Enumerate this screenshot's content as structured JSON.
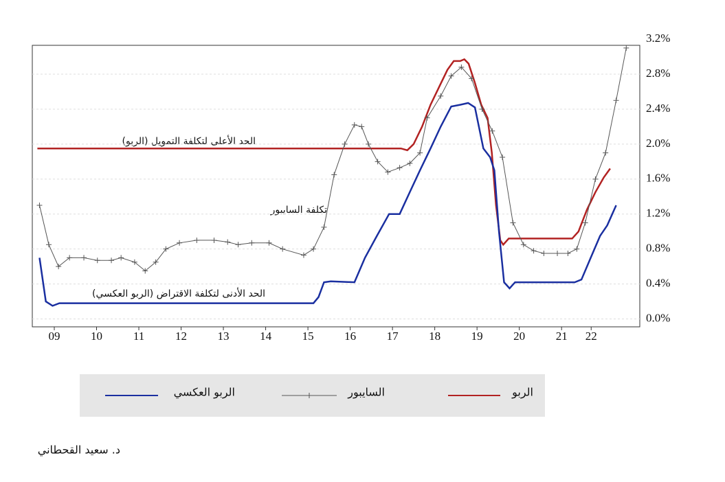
{
  "chart_data": {
    "type": "line",
    "annotations": [
      "الحد الأعلى لتكلفة التمويل (الربو)",
      "تكلفة السايبور",
      "الحد الأدنى لتكلفة الاقتراض (الربو العكسي)"
    ],
    "xlim": [
      8.98,
      23.35
    ],
    "xticks": [
      {
        "value": 9.5,
        "label": "09"
      },
      {
        "value": 10.5,
        "label": "10"
      },
      {
        "value": 11.5,
        "label": "11"
      },
      {
        "value": 12.5,
        "label": "12"
      },
      {
        "value": 13.5,
        "label": "13"
      },
      {
        "value": 14.5,
        "label": "14"
      },
      {
        "value": 15.5,
        "label": "15"
      },
      {
        "value": 16.5,
        "label": "16"
      },
      {
        "value": 17.5,
        "label": "17"
      },
      {
        "value": 18.5,
        "label": "18"
      },
      {
        "value": 19.5,
        "label": "19"
      },
      {
        "value": 20.5,
        "label": "20"
      },
      {
        "value": 21.5,
        "label": "21"
      },
      {
        "value": 22.2,
        "label": "22"
      }
    ],
    "ylim": [
      -0.09,
      3.13
    ],
    "yticks": [
      {
        "value": 0.0,
        "label": "0.0%"
      },
      {
        "value": 0.4,
        "label": "0.4%"
      },
      {
        "value": 0.8,
        "label": "0.8%"
      },
      {
        "value": 1.2,
        "label": "1.2%"
      },
      {
        "value": 1.6,
        "label": "1.6%"
      },
      {
        "value": 2.0,
        "label": "2.0%"
      },
      {
        "value": 2.4,
        "label": "2.4%"
      },
      {
        "value": 2.8,
        "label": "2.8%"
      },
      {
        "value": 3.2,
        "label": "3.2%"
      }
    ],
    "grid": true,
    "series": [
      {
        "name": "الربو",
        "color": "#b22222",
        "x": [
          9.1,
          17.7,
          17.85,
          18.0,
          18.2,
          18.4,
          18.6,
          18.8,
          18.95,
          19.1,
          19.2,
          19.3,
          19.45,
          19.6,
          19.75,
          19.85,
          19.95,
          20.05,
          20.12,
          20.25,
          20.5,
          21.0,
          21.5,
          21.75,
          21.9,
          22.1,
          22.3,
          22.5,
          22.65
        ],
        "values": [
          1.95,
          1.95,
          1.93,
          2.0,
          2.2,
          2.45,
          2.65,
          2.85,
          2.95,
          2.95,
          2.97,
          2.92,
          2.7,
          2.45,
          2.3,
          1.9,
          1.3,
          0.9,
          0.85,
          0.92,
          0.92,
          0.92,
          0.92,
          0.92,
          1.0,
          1.25,
          1.45,
          1.62,
          1.72
        ]
      },
      {
        "name": "السايبور",
        "color": "#555555",
        "marker": "+",
        "x": [
          9.15,
          9.37,
          9.6,
          9.86,
          10.2,
          10.52,
          10.85,
          11.08,
          11.4,
          11.65,
          11.9,
          12.14,
          12.46,
          12.87,
          13.28,
          13.6,
          13.85,
          14.17,
          14.58,
          14.9,
          15.4,
          15.63,
          15.88,
          16.12,
          16.37,
          16.6,
          16.77,
          16.93,
          17.15,
          17.39,
          17.67,
          17.91,
          18.15,
          18.32,
          18.64,
          18.89,
          19.13,
          19.37,
          19.62,
          19.86,
          20.1,
          20.35,
          20.6,
          20.84,
          21.08,
          21.4,
          21.65,
          21.86,
          22.06,
          22.3,
          22.54,
          22.79,
          23.03
        ],
        "values": [
          1.3,
          0.85,
          0.6,
          0.7,
          0.7,
          0.67,
          0.67,
          0.7,
          0.65,
          0.55,
          0.65,
          0.8,
          0.87,
          0.9,
          0.9,
          0.88,
          0.85,
          0.87,
          0.87,
          0.8,
          0.73,
          0.8,
          1.05,
          1.65,
          2.0,
          2.22,
          2.2,
          2.0,
          1.8,
          1.68,
          1.73,
          1.78,
          1.9,
          2.3,
          2.55,
          2.78,
          2.88,
          2.75,
          2.4,
          2.15,
          1.85,
          1.1,
          0.85,
          0.78,
          0.75,
          0.75,
          0.75,
          0.8,
          1.1,
          1.6,
          1.9,
          2.5,
          3.1
        ]
      },
      {
        "name": "الربو العكسي",
        "color": "#1a2fa0",
        "x": [
          9.15,
          9.3,
          9.46,
          9.62,
          15.47,
          15.63,
          15.75,
          15.88,
          16.04,
          16.6,
          16.85,
          17.13,
          17.42,
          17.67,
          17.91,
          18.15,
          18.4,
          18.64,
          18.89,
          19.1,
          19.29,
          19.45,
          19.65,
          19.81,
          19.91,
          20.02,
          20.14,
          20.27,
          20.4,
          20.76,
          21.81,
          21.97,
          22.19,
          22.41,
          22.58,
          22.79
        ],
        "values": [
          0.7,
          0.2,
          0.15,
          0.18,
          0.18,
          0.18,
          0.25,
          0.42,
          0.43,
          0.42,
          0.7,
          0.95,
          1.2,
          1.2,
          1.45,
          1.7,
          1.95,
          2.2,
          2.43,
          2.45,
          2.47,
          2.42,
          1.95,
          1.85,
          1.7,
          1.0,
          0.42,
          0.35,
          0.42,
          0.42,
          0.42,
          0.45,
          0.7,
          0.95,
          1.07,
          1.3
        ]
      }
    ]
  },
  "author": "د. سعيد القحطاني"
}
